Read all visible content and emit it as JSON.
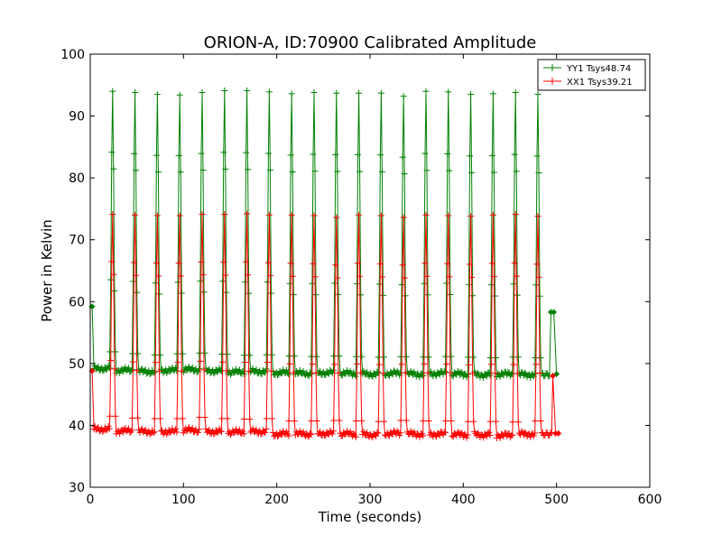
{
  "chart_data": {
    "type": "line",
    "title": "ORION-A, ID:70900 Calibrated Amplitude",
    "xlabel": "Time (seconds)",
    "ylabel": "Power in Kelvin",
    "xlim": [
      0,
      600
    ],
    "ylim": [
      30,
      100
    ],
    "xticks": [
      0,
      100,
      200,
      300,
      400,
      500,
      600
    ],
    "yticks": [
      30,
      40,
      50,
      60,
      70,
      80,
      90,
      100
    ],
    "grid": false,
    "legend_position": "top-right",
    "marker": "plus",
    "peak_times": [
      24,
      48,
      72,
      96,
      120,
      144,
      168,
      192,
      216,
      240,
      264,
      288,
      312,
      336,
      360,
      384,
      408,
      432,
      456,
      480
    ],
    "series": [
      {
        "name": "YY1 Tsys48.74",
        "color": "#008000",
        "start_point": [
          2,
          59.2
        ],
        "baseline": [
          49.2,
          48.9,
          48.7,
          48.9,
          49.0,
          48.8,
          48.6,
          48.7,
          48.5,
          48.4,
          48.5,
          48.4,
          48.3,
          48.4,
          48.3,
          48.4,
          48.3,
          48.2,
          48.3,
          48.2
        ],
        "peaks": [
          94,
          93.8,
          93.5,
          93.4,
          93.8,
          94.1,
          94.1,
          93.9,
          93.6,
          93.8,
          93.7,
          93.7,
          93.7,
          93.2,
          94.0,
          93.9,
          93.5,
          93.6,
          93.8,
          93.5
        ],
        "tail_points": [
          [
            494,
            58.3
          ],
          [
            497,
            58.3
          ],
          [
            500,
            48.3
          ]
        ]
      },
      {
        "name": "XX1 Tsys39.21",
        "color": "#ff0000",
        "start_point": [
          2,
          48.8
        ],
        "baseline": [
          39.4,
          39.1,
          39.0,
          39.0,
          39.2,
          39.0,
          38.9,
          39.0,
          38.6,
          38.6,
          38.7,
          38.6,
          38.5,
          38.7,
          38.6,
          38.6,
          38.5,
          38.5,
          38.4,
          38.6
        ],
        "peaks": [
          74.1,
          74.0,
          73.9,
          73.9,
          74.1,
          74.1,
          74.2,
          74.0,
          74.0,
          73.9,
          73.6,
          74.0,
          73.9,
          73.6,
          74.0,
          73.9,
          73.8,
          74.0,
          74.1,
          73.8
        ],
        "tail_points": [
          [
            496,
            48.0
          ],
          [
            499,
            38.7
          ],
          [
            502,
            38.7
          ]
        ]
      }
    ]
  }
}
